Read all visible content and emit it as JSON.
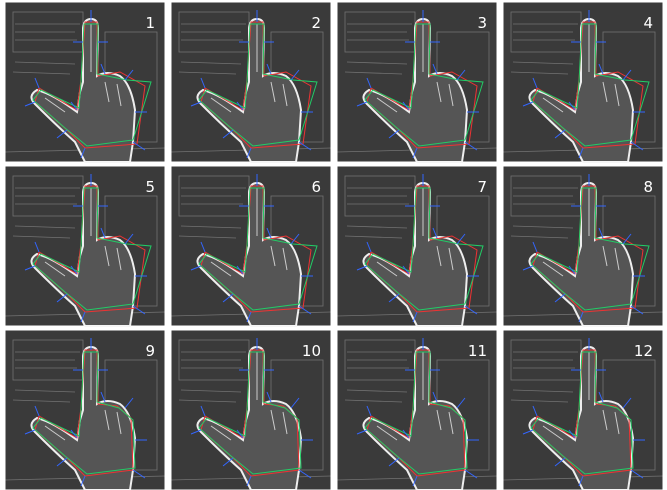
{
  "panels": [
    {
      "label": "1"
    },
    {
      "label": "2"
    },
    {
      "label": "3"
    },
    {
      "label": "4"
    },
    {
      "label": "5"
    },
    {
      "label": "6"
    },
    {
      "label": "7"
    },
    {
      "label": "8"
    },
    {
      "label": "9"
    },
    {
      "label": "10"
    },
    {
      "label": "11"
    },
    {
      "label": "12"
    }
  ]
}
